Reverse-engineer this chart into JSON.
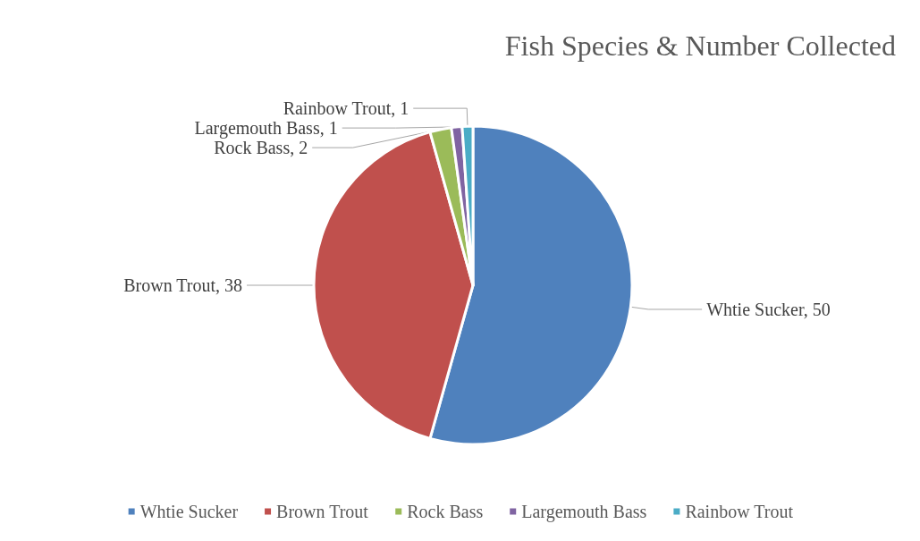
{
  "chart_data": {
    "type": "pie",
    "title": "Fish Species & Number Collected",
    "categories": [
      "Whtie Sucker",
      "Brown Trout",
      "Rock Bass",
      "Largemouth Bass",
      "Rainbow Trout"
    ],
    "values": [
      50,
      38,
      2,
      1,
      1
    ],
    "colors": [
      "#4f81bd",
      "#c0504d",
      "#9bbb59",
      "#8064a2",
      "#4bacc6"
    ],
    "value_labels": [
      "Whtie Sucker, 50",
      "Brown Trout, 38",
      "Rock Bass, 2",
      "Largemouth Bass, 1",
      "Rainbow Trout, 1"
    ],
    "legend": "bottom"
  }
}
